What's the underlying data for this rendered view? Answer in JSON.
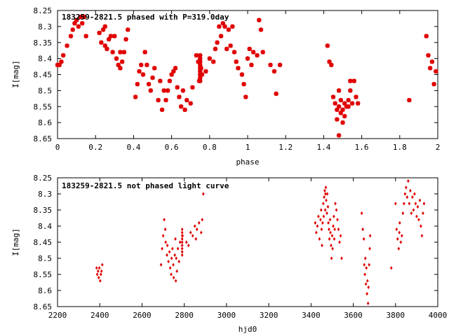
{
  "colors": {
    "points": "#e00000",
    "frame": "#000000",
    "background": "#ffffff"
  },
  "chart_data": [
    {
      "type": "scatter",
      "title": "183259-2821.5 phased with P=319.0day",
      "xlabel": "phase",
      "ylabel": "I[mag]",
      "xlim": [
        0,
        2
      ],
      "ylim": [
        8.25,
        8.65
      ],
      "y_inverted": true,
      "grid": false,
      "marker": "star",
      "xticks": [
        0,
        0.2,
        0.4,
        0.6,
        0.8,
        1,
        1.2,
        1.4,
        1.6,
        1.8,
        2
      ],
      "yticks": [
        8.25,
        8.3,
        8.35,
        8.4,
        8.45,
        8.5,
        8.55,
        8.6,
        8.65
      ],
      "xtick_labels": [
        "0",
        "0.2",
        "0.4",
        "0.6",
        "0.8",
        "1",
        "1.2",
        "1.4",
        "1.6",
        "1.8",
        "2"
      ],
      "ytick_labels": [
        "8.25",
        "8.3",
        "8.35",
        "8.4",
        "8.45",
        "8.5",
        "8.55",
        "8.6",
        "8.65"
      ],
      "points": [
        [
          0.0,
          8.42
        ],
        [
          0.01,
          8.42
        ],
        [
          0.02,
          8.41
        ],
        [
          0.03,
          8.39
        ],
        [
          0.05,
          8.36
        ],
        [
          0.07,
          8.33
        ],
        [
          0.08,
          8.31
        ],
        [
          0.09,
          8.29
        ],
        [
          0.1,
          8.28
        ],
        [
          0.11,
          8.3
        ],
        [
          0.12,
          8.27
        ],
        [
          0.13,
          8.29
        ],
        [
          0.14,
          8.27
        ],
        [
          0.15,
          8.33
        ],
        [
          0.22,
          8.32
        ],
        [
          0.23,
          8.35
        ],
        [
          0.24,
          8.31
        ],
        [
          0.25,
          8.3
        ],
        [
          0.25,
          8.36
        ],
        [
          0.26,
          8.37
        ],
        [
          0.27,
          8.34
        ],
        [
          0.28,
          8.33
        ],
        [
          0.29,
          8.38
        ],
        [
          0.3,
          8.33
        ],
        [
          0.31,
          8.4
        ],
        [
          0.32,
          8.42
        ],
        [
          0.33,
          8.38
        ],
        [
          0.33,
          8.43
        ],
        [
          0.34,
          8.41
        ],
        [
          0.35,
          8.38
        ],
        [
          0.36,
          8.34
        ],
        [
          0.37,
          8.31
        ],
        [
          0.41,
          8.52
        ],
        [
          0.42,
          8.48
        ],
        [
          0.43,
          8.44
        ],
        [
          0.44,
          8.42
        ],
        [
          0.45,
          8.45
        ],
        [
          0.46,
          8.38
        ],
        [
          0.47,
          8.42
        ],
        [
          0.48,
          8.48
        ],
        [
          0.49,
          8.5
        ],
        [
          0.5,
          8.46
        ],
        [
          0.51,
          8.43
        ],
        [
          0.53,
          8.53
        ],
        [
          0.54,
          8.47
        ],
        [
          0.55,
          8.56
        ],
        [
          0.56,
          8.5
        ],
        [
          0.57,
          8.53
        ],
        [
          0.58,
          8.5
        ],
        [
          0.59,
          8.47
        ],
        [
          0.6,
          8.45
        ],
        [
          0.61,
          8.44
        ],
        [
          0.62,
          8.43
        ],
        [
          0.63,
          8.49
        ],
        [
          0.64,
          8.52
        ],
        [
          0.65,
          8.55
        ],
        [
          0.66,
          8.5
        ],
        [
          0.67,
          8.56
        ],
        [
          0.68,
          8.53
        ],
        [
          0.7,
          8.54
        ],
        [
          0.71,
          8.49
        ],
        [
          0.73,
          8.39
        ],
        [
          0.74,
          8.41
        ],
        [
          0.745,
          8.47
        ],
        [
          0.75,
          8.39
        ],
        [
          0.75,
          8.4
        ],
        [
          0.75,
          8.41
        ],
        [
          0.75,
          8.42
        ],
        [
          0.75,
          8.43
        ],
        [
          0.75,
          8.44
        ],
        [
          0.75,
          8.45
        ],
        [
          0.75,
          8.46
        ],
        [
          0.75,
          8.47
        ],
        [
          0.755,
          8.43
        ],
        [
          0.76,
          8.45
        ],
        [
          0.78,
          8.44
        ],
        [
          0.8,
          8.4
        ],
        [
          0.82,
          8.41
        ],
        [
          0.83,
          8.37
        ],
        [
          0.84,
          8.35
        ],
        [
          0.85,
          8.3
        ],
        [
          0.86,
          8.33
        ],
        [
          0.87,
          8.29
        ],
        [
          0.88,
          8.3
        ],
        [
          0.89,
          8.37
        ],
        [
          0.9,
          8.31
        ],
        [
          0.91,
          8.36
        ],
        [
          0.92,
          8.3
        ],
        [
          0.93,
          8.38
        ],
        [
          0.94,
          8.41
        ],
        [
          0.95,
          8.43
        ],
        [
          0.97,
          8.45
        ],
        [
          0.98,
          8.48
        ],
        [
          0.99,
          8.52
        ],
        [
          1.0,
          8.4
        ],
        [
          1.01,
          8.37
        ],
        [
          1.02,
          8.42
        ],
        [
          1.03,
          8.38
        ],
        [
          1.05,
          8.39
        ],
        [
          1.06,
          8.28
        ],
        [
          1.07,
          8.31
        ],
        [
          1.08,
          8.38
        ],
        [
          1.12,
          8.42
        ],
        [
          1.14,
          8.44
        ],
        [
          1.15,
          8.51
        ],
        [
          1.17,
          8.42
        ],
        [
          1.42,
          8.36
        ],
        [
          1.43,
          8.41
        ],
        [
          1.44,
          8.42
        ],
        [
          1.45,
          8.52
        ],
        [
          1.46,
          8.54
        ],
        [
          1.47,
          8.56
        ],
        [
          1.47,
          8.59
        ],
        [
          1.48,
          8.5
        ],
        [
          1.48,
          8.55
        ],
        [
          1.48,
          8.64
        ],
        [
          1.49,
          8.53
        ],
        [
          1.49,
          8.57
        ],
        [
          1.5,
          8.56
        ],
        [
          1.5,
          8.6
        ],
        [
          1.51,
          8.54
        ],
        [
          1.51,
          8.58
        ],
        [
          1.52,
          8.55
        ],
        [
          1.53,
          8.53
        ],
        [
          1.53,
          8.55
        ],
        [
          1.54,
          8.47
        ],
        [
          1.54,
          8.5
        ],
        [
          1.55,
          8.54
        ],
        [
          1.56,
          8.47
        ],
        [
          1.57,
          8.52
        ],
        [
          1.58,
          8.54
        ],
        [
          1.85,
          8.53
        ],
        [
          1.94,
          8.33
        ],
        [
          1.95,
          8.39
        ],
        [
          1.96,
          8.43
        ],
        [
          1.97,
          8.41
        ],
        [
          1.98,
          8.48
        ],
        [
          1.99,
          8.44
        ]
      ]
    },
    {
      "type": "scatter",
      "title": "183259-2821.5 not phased light curve",
      "xlabel": "hjd0",
      "ylabel": "I[mag]",
      "xlim": [
        2200,
        4000
      ],
      "ylim": [
        8.25,
        8.65
      ],
      "y_inverted": true,
      "grid": false,
      "marker": "diamond",
      "xticks": [
        2200,
        2400,
        2600,
        2800,
        3000,
        3200,
        3400,
        3600,
        3800,
        4000
      ],
      "yticks": [
        8.25,
        8.3,
        8.35,
        8.4,
        8.45,
        8.5,
        8.55,
        8.6,
        8.65
      ],
      "xtick_labels": [
        "2200",
        "2400",
        "2600",
        "2800",
        "3000",
        "3200",
        "3400",
        "3600",
        "3800",
        "4000"
      ],
      "ytick_labels": [
        "8.25",
        "8.3",
        "8.35",
        "8.4",
        "8.45",
        "8.5",
        "8.55",
        "8.6",
        "8.65"
      ],
      "points": [
        [
          2385,
          8.53
        ],
        [
          2388,
          8.55
        ],
        [
          2392,
          8.54
        ],
        [
          2395,
          8.56
        ],
        [
          2398,
          8.53
        ],
        [
          2402,
          8.57
        ],
        [
          2405,
          8.55
        ],
        [
          2408,
          8.54
        ],
        [
          2412,
          8.52
        ],
        [
          2690,
          8.52
        ],
        [
          2695,
          8.47
        ],
        [
          2700,
          8.43
        ],
        [
          2705,
          8.38
        ],
        [
          2710,
          8.41
        ],
        [
          2712,
          8.45
        ],
        [
          2718,
          8.49
        ],
        [
          2720,
          8.46
        ],
        [
          2725,
          8.51
        ],
        [
          2730,
          8.48
        ],
        [
          2733,
          8.53
        ],
        [
          2738,
          8.55
        ],
        [
          2740,
          8.5
        ],
        [
          2744,
          8.47
        ],
        [
          2748,
          8.52
        ],
        [
          2750,
          8.56
        ],
        [
          2755,
          8.49
        ],
        [
          2758,
          8.44
        ],
        [
          2760,
          8.57
        ],
        [
          2762,
          8.5
        ],
        [
          2765,
          8.54
        ],
        [
          2770,
          8.47
        ],
        [
          2775,
          8.51
        ],
        [
          2780,
          8.45
        ],
        [
          2790,
          8.41
        ],
        [
          2790,
          8.42
        ],
        [
          2790,
          8.43
        ],
        [
          2790,
          8.44
        ],
        [
          2790,
          8.45
        ],
        [
          2790,
          8.46
        ],
        [
          2790,
          8.47
        ],
        [
          2790,
          8.48
        ],
        [
          2790,
          8.49
        ],
        [
          2792,
          8.43
        ],
        [
          2810,
          8.45
        ],
        [
          2820,
          8.46
        ],
        [
          2830,
          8.42
        ],
        [
          2840,
          8.43
        ],
        [
          2850,
          8.4
        ],
        [
          2855,
          8.44
        ],
        [
          2860,
          8.41
        ],
        [
          2870,
          8.39
        ],
        [
          2880,
          8.42
        ],
        [
          2885,
          8.38
        ],
        [
          2890,
          8.3
        ],
        [
          3420,
          8.39
        ],
        [
          3425,
          8.42
        ],
        [
          3430,
          8.4
        ],
        [
          3435,
          8.37
        ],
        [
          3440,
          8.44
        ],
        [
          3445,
          8.38
        ],
        [
          3448,
          8.35
        ],
        [
          3450,
          8.41
        ],
        [
          3452,
          8.46
        ],
        [
          3455,
          8.39
        ],
        [
          3458,
          8.33
        ],
        [
          3460,
          8.37
        ],
        [
          3462,
          8.31
        ],
        [
          3465,
          8.29
        ],
        [
          3467,
          8.35
        ],
        [
          3468,
          8.3
        ],
        [
          3470,
          8.28
        ],
        [
          3472,
          8.32
        ],
        [
          3475,
          8.36
        ],
        [
          3477,
          8.3
        ],
        [
          3480,
          8.34
        ],
        [
          3482,
          8.39
        ],
        [
          3485,
          8.41
        ],
        [
          3487,
          8.44
        ],
        [
          3490,
          8.38
        ],
        [
          3492,
          8.42
        ],
        [
          3495,
          8.46
        ],
        [
          3497,
          8.5
        ],
        [
          3500,
          8.43
        ],
        [
          3502,
          8.47
        ],
        [
          3505,
          8.4
        ],
        [
          3508,
          8.37
        ],
        [
          3510,
          8.44
        ],
        [
          3512,
          8.41
        ],
        [
          3515,
          8.33
        ],
        [
          3520,
          8.35
        ],
        [
          3525,
          8.38
        ],
        [
          3530,
          8.41
        ],
        [
          3535,
          8.45
        ],
        [
          3540,
          8.43
        ],
        [
          3545,
          8.5
        ],
        [
          3640,
          8.36
        ],
        [
          3645,
          8.41
        ],
        [
          3650,
          8.44
        ],
        [
          3652,
          8.52
        ],
        [
          3655,
          8.55
        ],
        [
          3657,
          8.5
        ],
        [
          3660,
          8.58
        ],
        [
          3662,
          8.53
        ],
        [
          3665,
          8.61
        ],
        [
          3667,
          8.57
        ],
        [
          3670,
          8.64
        ],
        [
          3672,
          8.59
        ],
        [
          3675,
          8.52
        ],
        [
          3678,
          8.47
        ],
        [
          3680,
          8.43
        ],
        [
          3780,
          8.53
        ],
        [
          3800,
          8.33
        ],
        [
          3805,
          8.41
        ],
        [
          3810,
          8.44
        ],
        [
          3815,
          8.47
        ],
        [
          3818,
          8.42
        ],
        [
          3820,
          8.39
        ],
        [
          3825,
          8.45
        ],
        [
          3830,
          8.43
        ],
        [
          3835,
          8.36
        ],
        [
          3840,
          8.33
        ],
        [
          3845,
          8.3
        ],
        [
          3850,
          8.28
        ],
        [
          3855,
          8.31
        ],
        [
          3860,
          8.26
        ],
        [
          3865,
          8.33
        ],
        [
          3870,
          8.29
        ],
        [
          3875,
          8.36
        ],
        [
          3880,
          8.31
        ],
        [
          3885,
          8.35
        ],
        [
          3890,
          8.3
        ],
        [
          3895,
          8.33
        ],
        [
          3900,
          8.37
        ],
        [
          3905,
          8.34
        ],
        [
          3910,
          8.38
        ],
        [
          3915,
          8.32
        ],
        [
          3920,
          8.4
        ],
        [
          3925,
          8.43
        ],
        [
          3930,
          8.36
        ],
        [
          3935,
          8.33
        ]
      ]
    }
  ]
}
